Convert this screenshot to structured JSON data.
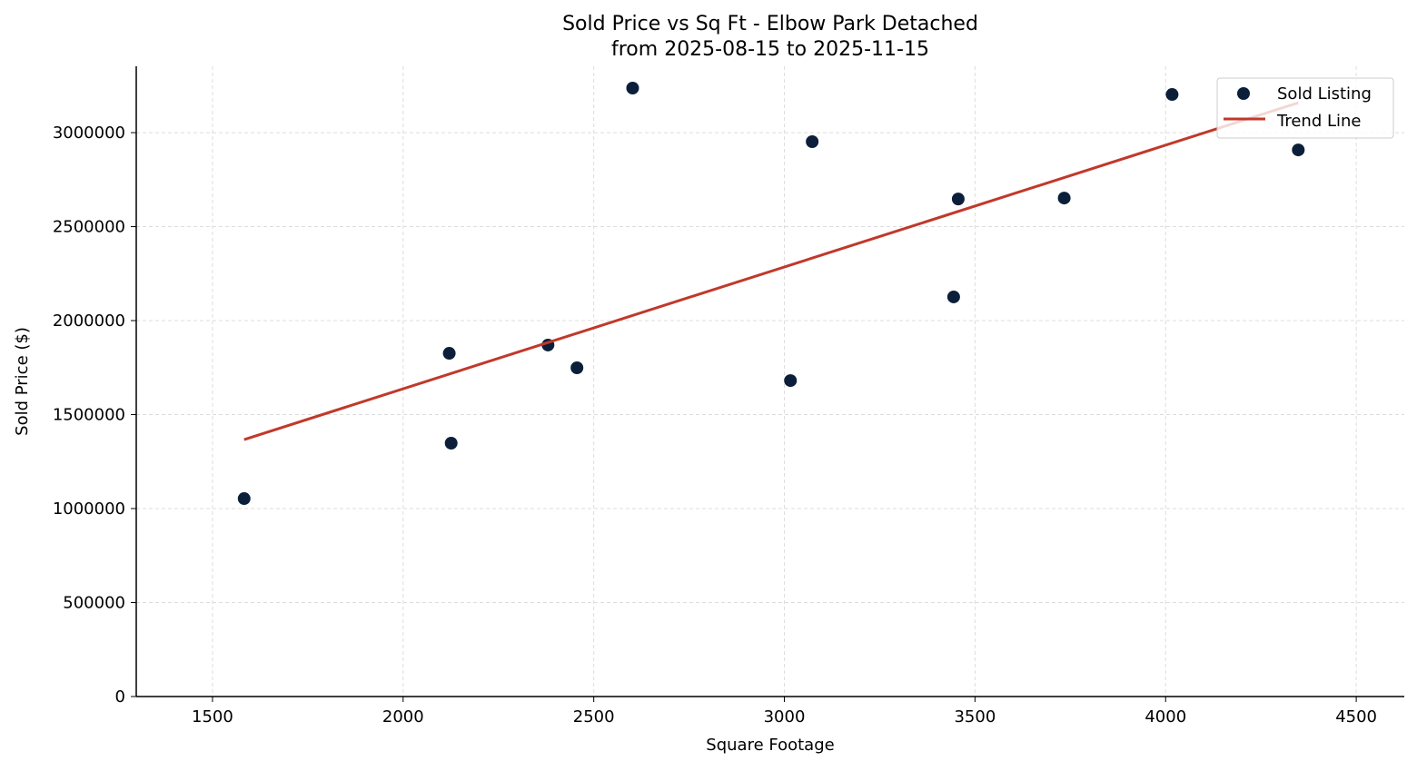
{
  "chart_data": {
    "type": "scatter",
    "title": "Sold Price vs Sq Ft - Elbow Park Detached",
    "subtitle": "from 2025-08-15 to 2025-11-15",
    "xlabel": "Square Footage",
    "ylabel": "Sold Price ($)",
    "xlim": [
      1300,
      4626
    ],
    "ylim": [
      0,
      3353000
    ],
    "xticks": [
      1500,
      2000,
      2500,
      3000,
      3500,
      4000,
      4500
    ],
    "yticks": [
      0,
      500000,
      1000000,
      1500000,
      2000000,
      2500000,
      3000000
    ],
    "grid": true,
    "legend_position": "top-right",
    "series": [
      {
        "name": "Sold Listing",
        "kind": "scatter",
        "color": "#0b1f3a",
        "points": [
          {
            "x": 1583,
            "y": 1053000
          },
          {
            "x": 2121,
            "y": 1826000
          },
          {
            "x": 2126,
            "y": 1348000
          },
          {
            "x": 2380,
            "y": 1870000
          },
          {
            "x": 2456,
            "y": 1749000
          },
          {
            "x": 2602,
            "y": 3237000
          },
          {
            "x": 3016,
            "y": 1681000
          },
          {
            "x": 3073,
            "y": 2952000
          },
          {
            "x": 3444,
            "y": 2126000
          },
          {
            "x": 3456,
            "y": 2647000
          },
          {
            "x": 3734,
            "y": 2652000
          },
          {
            "x": 4017,
            "y": 3203000
          },
          {
            "x": 4348,
            "y": 2908000
          }
        ]
      },
      {
        "name": "Trend Line",
        "kind": "line",
        "color": "#c0392b",
        "points": [
          {
            "x": 1583,
            "y": 1367000
          },
          {
            "x": 4348,
            "y": 3159000
          }
        ]
      }
    ]
  }
}
